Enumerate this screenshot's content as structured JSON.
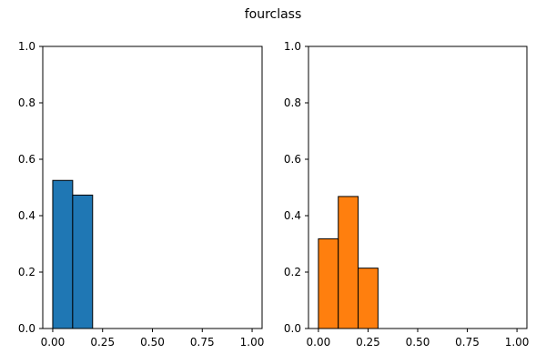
{
  "figure": {
    "title": "fourclass"
  },
  "chart_data": [
    {
      "type": "bar",
      "title": "",
      "xlabel": "",
      "ylabel": "",
      "xlim": [
        -0.05,
        1.05
      ],
      "ylim": [
        0,
        1.0
      ],
      "xticks": [
        0.0,
        0.25,
        0.5,
        0.75,
        1.0
      ],
      "xtick_labels": [
        "0.00",
        "0.25",
        "0.50",
        "0.75",
        "1.00"
      ],
      "yticks": [
        0.0,
        0.2,
        0.4,
        0.6,
        0.8,
        1.0
      ],
      "ytick_labels": [
        "0.0",
        "0.2",
        "0.4",
        "0.6",
        "0.8",
        "1.0"
      ],
      "bin_edges": [
        0.0,
        0.1,
        0.2
      ],
      "values": [
        0.525,
        0.473
      ],
      "color": "#1f77b4",
      "edgecolor": "#000000",
      "grid": false
    },
    {
      "type": "bar",
      "title": "",
      "xlabel": "",
      "ylabel": "",
      "xlim": [
        -0.05,
        1.05
      ],
      "ylim": [
        0,
        1.0
      ],
      "xticks": [
        0.0,
        0.25,
        0.5,
        0.75,
        1.0
      ],
      "xtick_labels": [
        "0.00",
        "0.25",
        "0.50",
        "0.75",
        "1.00"
      ],
      "yticks": [
        0.0,
        0.2,
        0.4,
        0.6,
        0.8,
        1.0
      ],
      "ytick_labels": [
        "0.0",
        "0.2",
        "0.4",
        "0.6",
        "0.8",
        "1.0"
      ],
      "bin_edges": [
        0.0,
        0.1,
        0.2,
        0.3
      ],
      "values": [
        0.318,
        0.468,
        0.214
      ],
      "color": "#ff7f0e",
      "edgecolor": "#000000",
      "grid": false
    }
  ]
}
